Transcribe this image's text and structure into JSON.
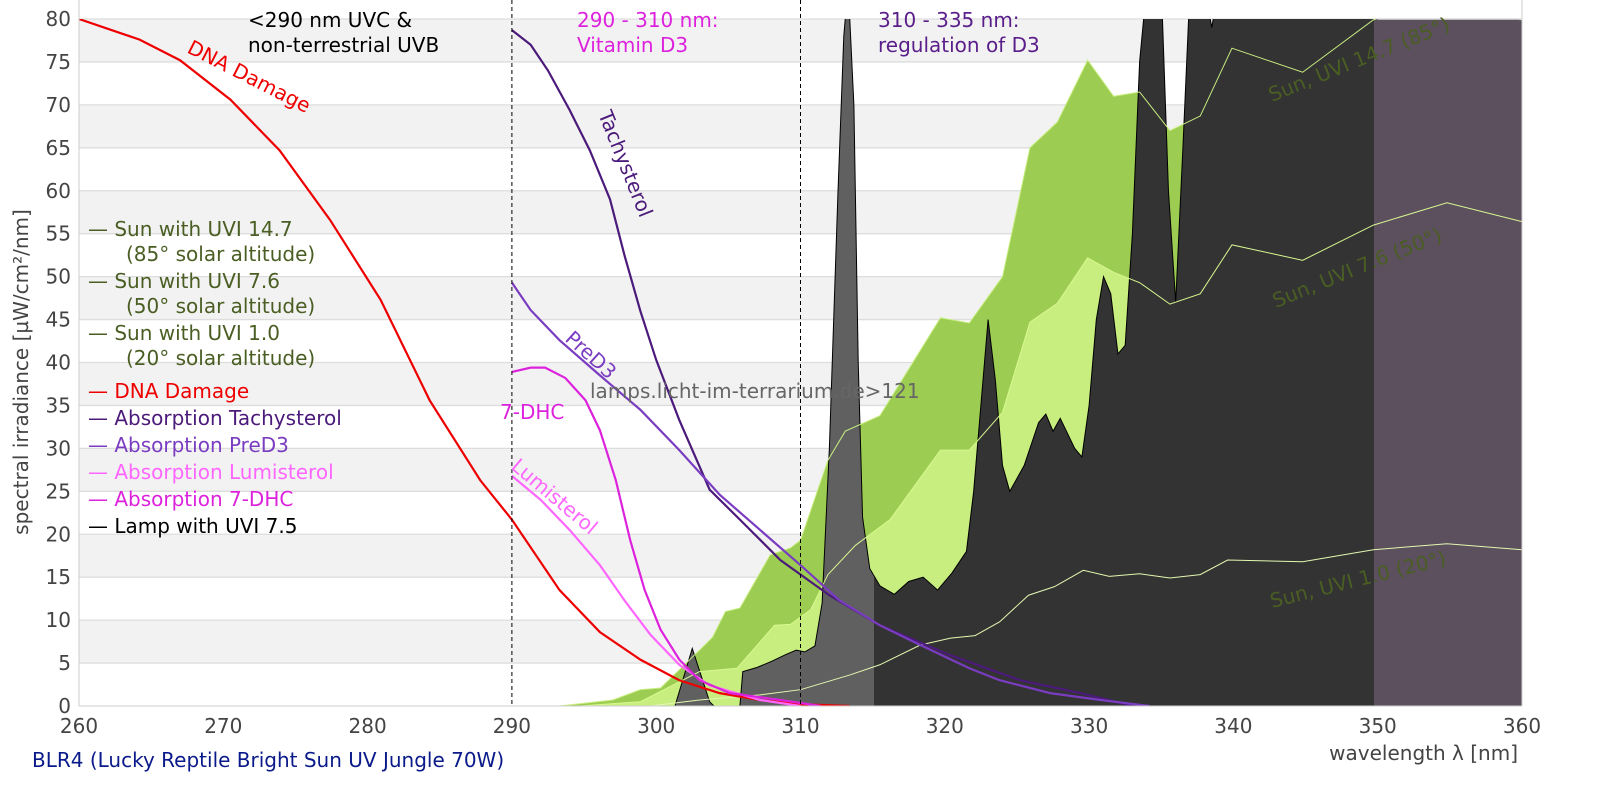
{
  "chart_data": {
    "type": "area",
    "title": "BLR4 (Lucky Reptile Bright Sun UV Jungle 70W)",
    "xlabel": "wavelength λ [nm]",
    "ylabel": "spectral irradiance [µW/cm²/nm]",
    "xlim": [
      260,
      360
    ],
    "ylim": [
      0,
      80
    ],
    "xticks": [
      260,
      270,
      280,
      290,
      300,
      310,
      320,
      330,
      340,
      350,
      360
    ],
    "yticks": [
      0,
      5,
      10,
      15,
      20,
      25,
      30,
      35,
      40,
      45,
      50,
      55,
      60,
      65,
      70,
      75,
      80
    ],
    "grid": true,
    "legend_position": "left",
    "series": [
      {
        "name": "Sun with UVI 14.7 (85° solar altitude)",
        "color": "#9ccc52",
        "line_color": "#c8ee80",
        "kind": "area",
        "x": [
          293.3,
          297,
          298.9,
          300.3,
          303,
          303.9,
          304.8,
          305.8,
          307.9,
          309.3,
          310,
          311.9,
          313.1,
          315.5,
          319.7,
          321.7,
          324,
          325.9,
          327.8,
          329.9,
          331.7,
          333.5,
          335.6,
          337.7,
          339.9,
          344.8,
          349.7,
          354.3,
          360
        ],
        "y": [
          0,
          0.7,
          1.9,
          2.1,
          6.5,
          8,
          11,
          11.4,
          17.6,
          18.4,
          19.3,
          28.6,
          32,
          33.8,
          45.2,
          44.6,
          50,
          65,
          68,
          75.2,
          71,
          71.5,
          67,
          68.7,
          76.6,
          73.8,
          79.9,
          82.4,
          79.9
        ]
      },
      {
        "name": "Sun with UVI 7.6 (50° solar altitude)",
        "color": "#c8ee80",
        "line_color": "#d8f890",
        "kind": "area",
        "x": [
          294.7,
          298.9,
          303,
          305.6,
          308.2,
          309.3,
          310.7,
          311.9,
          313.8,
          316.2,
          319.7,
          321.7,
          324,
          325.9,
          327.8,
          329.9,
          331.7,
          333.5,
          335.6,
          337.7,
          339.9,
          344.8,
          349.7,
          354.8,
          360
        ],
        "y": [
          0,
          0.5,
          4,
          4.4,
          9.4,
          9.5,
          11.2,
          15.3,
          18.7,
          21.7,
          29.8,
          29.8,
          34.2,
          44.7,
          46.9,
          52.2,
          50.5,
          49.3,
          46.8,
          48,
          53.7,
          51.9,
          56,
          58.6,
          56.4
        ]
      },
      {
        "name": "Sun with UVI 1.0 (20° solar altitude)",
        "color": "#e4f8b0",
        "kind": "line",
        "x": [
          299.6,
          303,
          307.2,
          310,
          313.4,
          315.5,
          318.3,
          320.4,
          322.1,
          323.8,
          325.8,
          327.6,
          329.6,
          331.4,
          333.5,
          335.6,
          337.7,
          339.6,
          344.8,
          349.7,
          354.8,
          360
        ],
        "y": [
          0,
          0.7,
          1.3,
          1.9,
          3.6,
          4.8,
          7.1,
          7.9,
          8.2,
          9.8,
          12.9,
          13.9,
          15.8,
          15.1,
          15.4,
          14.9,
          15.3,
          17,
          16.8,
          18.2,
          18.9,
          18.2
        ]
      },
      {
        "name": "Lamp with UVI 7.5",
        "color": "#333333",
        "kind": "area",
        "x": [
          301.3,
          302.5,
          303.7,
          304,
          305.8,
          306,
          307,
          308,
          309,
          309.7,
          310.3,
          311,
          311.5,
          312,
          312.6,
          313,
          313.3,
          313.7,
          314,
          314.3,
          314.8,
          315.5,
          316.5,
          317.5,
          318.5,
          319.5,
          320.5,
          321.5,
          322,
          322.5,
          323,
          323.5,
          324,
          324.5,
          325.5,
          326.5,
          327,
          327.5,
          328,
          329,
          329.5,
          330,
          330.5,
          331,
          331.5,
          332,
          332.5,
          333,
          333.5,
          334,
          335,
          335.5,
          336,
          336.5,
          337,
          338,
          338.5,
          339,
          340,
          350,
          360
        ],
        "y": [
          0,
          6.7,
          0.5,
          0,
          0,
          4,
          4.5,
          5.2,
          6,
          6.5,
          6.3,
          7,
          12,
          30,
          60,
          78,
          84,
          70,
          40,
          22,
          16,
          14,
          13,
          14.5,
          15,
          13.5,
          15.5,
          18,
          25,
          35,
          45,
          38,
          28,
          25,
          28,
          33,
          34,
          32,
          33.5,
          30,
          29,
          35,
          45,
          50,
          48,
          41,
          42,
          55,
          75,
          84,
          84,
          60,
          47,
          65,
          84,
          84,
          79,
          84,
          84,
          84,
          84
        ]
      },
      {
        "name": "DNA Damage",
        "color": "#ee0000",
        "kind": "line",
        "x": [
          260,
          264.2,
          267,
          270.5,
          273.9,
          277.4,
          280.9,
          284.3,
          287.8,
          290,
          293.3,
          296.1,
          298.9,
          301.6,
          304.4,
          307.2,
          310,
          313.4
        ],
        "y": [
          80,
          77.6,
          75.2,
          70.6,
          64.7,
          56.6,
          47.3,
          35.6,
          26.3,
          21.7,
          13.5,
          8.6,
          5.4,
          3,
          1.5,
          0.7,
          0.2,
          0
        ]
      },
      {
        "name": "Absorption Tachysterol",
        "color": "#4b1a7a",
        "kind": "line",
        "x": [
          290,
          291.3,
          292.5,
          294,
          295.4,
          296.8,
          297.8,
          298.9,
          300,
          301.6,
          303.7,
          305.8,
          308.6,
          312,
          315.5,
          320.4,
          325.2,
          329.4,
          333
        ],
        "y": [
          78.7,
          77,
          74,
          69.4,
          64.7,
          59,
          52.5,
          46,
          40.3,
          33.3,
          25.2,
          21.7,
          17,
          12.9,
          9.4,
          5.9,
          3,
          1.5,
          0
        ]
      },
      {
        "name": "Absorption PreD3",
        "color": "#7a3cc0",
        "kind": "line",
        "x": [
          290,
          291.3,
          293.3,
          296.1,
          298.9,
          301.6,
          304.4,
          307.2,
          310,
          312.7,
          315.5,
          318.3,
          321.7,
          323.8,
          327.3,
          330.8,
          334.2
        ],
        "y": [
          49.3,
          46.1,
          42.6,
          38.5,
          34.5,
          29.8,
          24.6,
          20.5,
          16.4,
          12.3,
          9.4,
          7.1,
          4.4,
          3,
          1.5,
          0.7,
          0
        ]
      },
      {
        "name": "Absorption Lumisterol",
        "color": "#ff66ff",
        "kind": "line",
        "x": [
          290,
          292,
          294,
          296.1,
          297.8,
          299.6,
          301.6,
          303.7,
          307.2,
          310
        ],
        "y": [
          26.8,
          24,
          20.5,
          16.4,
          12.3,
          8.3,
          4.8,
          2.4,
          0.7,
          0
        ]
      },
      {
        "name": "Absorption 7-DHC",
        "color": "#dd22dd",
        "kind": "line",
        "x": [
          290,
          291.3,
          292.3,
          293.7,
          295.1,
          296.1,
          297.2,
          298.2,
          299.2,
          300.3,
          301.6,
          303,
          305.1,
          308.6,
          311.4
        ],
        "y": [
          38.9,
          39.4,
          39.4,
          38.2,
          35.6,
          32.1,
          26.3,
          19.3,
          13.5,
          8.9,
          5.4,
          3,
          1.5,
          0.7,
          0
        ]
      }
    ],
    "regions": [
      {
        "from": 260,
        "to": 290,
        "label": "<290 nm UVC & non-terrestrial UVB"
      },
      {
        "from": 290,
        "to": 310,
        "label": "290 - 310 nm: Vitamin D3"
      },
      {
        "from": 310,
        "to": 335,
        "label": "310 - 335 nm: regulation of D3"
      }
    ],
    "annotations": {
      "dna": "DNA Damage",
      "tachy": "Tachysterol",
      "pred3": "PreD3",
      "dhc": "7-DHC",
      "lumi": "Lumisterol",
      "sun147": "Sun, UVI 14.7 (85°)",
      "sun76": "Sun, UVI 7.6 (50°)",
      "sun10": "Sun, UVI 1.0 (20°)",
      "watermark": "lamps.licht-im-terrarium.de>121",
      "uvc_1": "<290 nm UVC &",
      "uvc_2": "non-terrestrial UVB",
      "vitd_1": "290 - 310 nm:",
      "vitd_2": "Vitamin D3",
      "reg_1": "310 - 335 nm:",
      "reg_2": "regulation of D3"
    },
    "legend": [
      {
        "line1": "Sun with UVI 14.7",
        "line2": "(85° solar altitude)",
        "color": "#4a5e23"
      },
      {
        "line1": "Sun with UVI 7.6",
        "line2": "(50° solar altitude)",
        "color": "#4a5e23"
      },
      {
        "line1": "Sun with UVI 1.0",
        "line2": "(20° solar altitude)",
        "color": "#4a5e23"
      },
      {
        "line1": "DNA Damage",
        "color": "#ee0000"
      },
      {
        "line1": "Absorption Tachysterol",
        "color": "#4b1a7a"
      },
      {
        "line1": "Absorption PreD3",
        "color": "#7a3cc0"
      },
      {
        "line1": "Absorption Lumisterol",
        "color": "#ff66ff"
      },
      {
        "line1": "Absorption 7-DHC",
        "color": "#dd22dd"
      },
      {
        "line1": "Lamp with UVI 7.5",
        "color": "#000000"
      }
    ],
    "legend_dash": "—"
  }
}
